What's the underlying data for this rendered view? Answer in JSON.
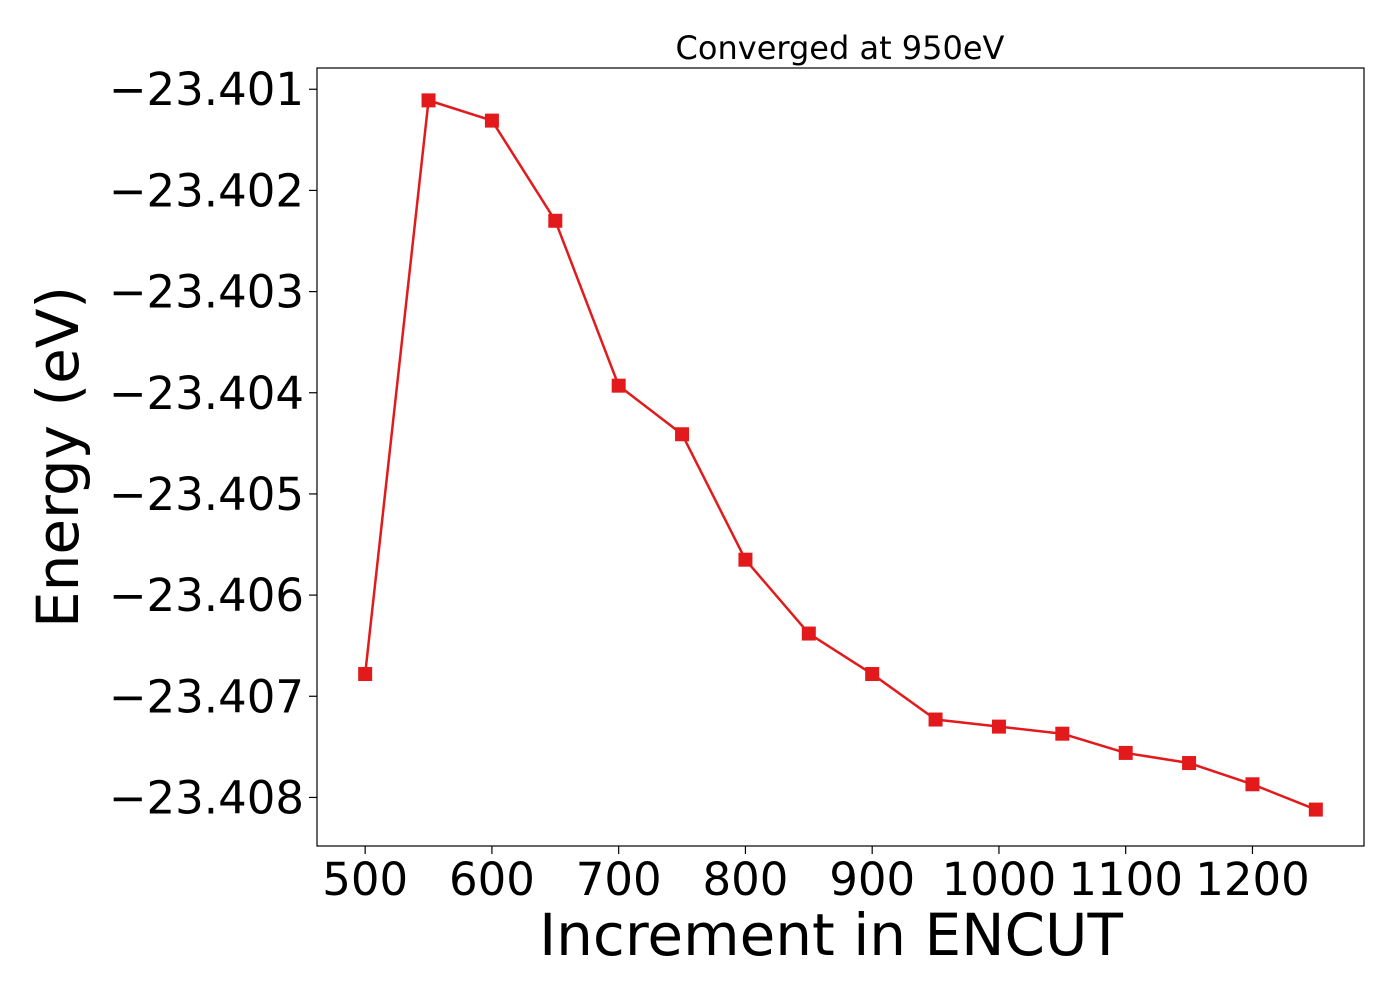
{
  "chart_data": {
    "type": "line",
    "title": "Converged at 950eV",
    "xlabel": "Increment in ENCUT",
    "ylabel": "Energy (eV)",
    "x": [
      500,
      550,
      600,
      650,
      700,
      750,
      800,
      850,
      900,
      950,
      1000,
      1050,
      1100,
      1150,
      1200,
      1250
    ],
    "series": [
      {
        "values": [
          -23.40678,
          -23.40111,
          -23.40131,
          -23.4023,
          -23.40393,
          -23.40441,
          -23.40565,
          -23.40638,
          -23.40678,
          -23.40723,
          -23.4073,
          -23.40737,
          -23.40756,
          -23.40766,
          -23.40787,
          -23.40812
        ],
        "color": "#e31a1c",
        "marker": "square"
      }
    ],
    "xlim": [
      462,
      1288
    ],
    "ylim": [
      -23.40848,
      -23.40079
    ],
    "xticks": [
      500,
      600,
      700,
      800,
      900,
      1000,
      1100,
      1200
    ],
    "xtick_labels": [
      "500",
      "600",
      "700",
      "800",
      "900",
      "1000",
      "1100",
      "1200"
    ],
    "yticks": [
      -23.401,
      -23.402,
      -23.403,
      -23.404,
      -23.405,
      -23.406,
      -23.407,
      -23.408
    ],
    "ytick_labels": [
      "−23.401",
      "−23.402",
      "−23.403",
      "−23.404",
      "−23.405",
      "−23.406",
      "−23.407",
      "−23.408"
    ],
    "grid": false,
    "legend": "none"
  }
}
